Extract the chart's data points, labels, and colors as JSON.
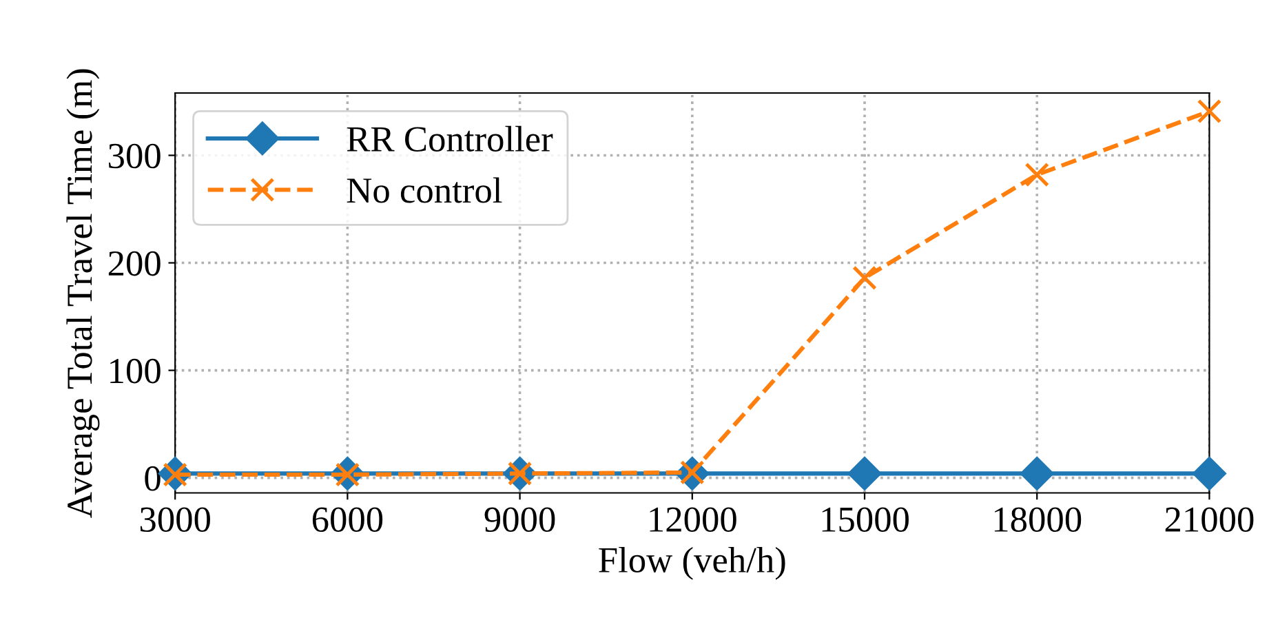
{
  "chart_data": {
    "type": "line",
    "xlabel": "Flow (veh/h)",
    "ylabel": "Average Total Travel Time (m)",
    "x": [
      3000,
      6000,
      9000,
      12000,
      15000,
      18000,
      21000
    ],
    "series": [
      {
        "name": "RR Controller",
        "color": "#1f77b4",
        "values": [
          4,
          4,
          4,
          4,
          4,
          4,
          4
        ],
        "marker": "diamond",
        "line_style": "solid"
      },
      {
        "name": "No control",
        "color": "#ff7f0e",
        "values": [
          3,
          3,
          4,
          5,
          186,
          282,
          341
        ],
        "marker": "cross",
        "line_style": "dashed"
      }
    ],
    "xlim": [
      3000,
      21000
    ],
    "xticks": [
      3000,
      6000,
      9000,
      12000,
      15000,
      18000,
      21000
    ],
    "ylim": [
      -14,
      358
    ],
    "yticks": [
      0,
      100,
      200,
      300
    ],
    "grid": true,
    "legend": "top left"
  }
}
